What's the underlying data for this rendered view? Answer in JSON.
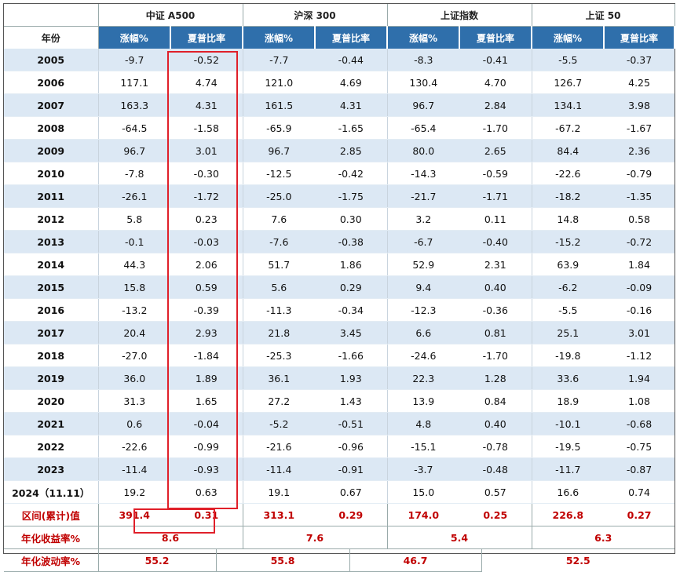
{
  "header": {
    "year_label": "年份",
    "groups": [
      "中证 A500",
      "沪深 300",
      "上证指数",
      "上证 50"
    ],
    "sub_labels": [
      "涨幅%",
      "夏普比率"
    ]
  },
  "rows": [
    {
      "year": "2005",
      "v": [
        "-9.7",
        "-0.52",
        "-7.7",
        "-0.44",
        "-8.3",
        "-0.41",
        "-5.5",
        "-0.37"
      ]
    },
    {
      "year": "2006",
      "v": [
        "117.1",
        "4.74",
        "121.0",
        "4.69",
        "130.4",
        "4.70",
        "126.7",
        "4.25"
      ]
    },
    {
      "year": "2007",
      "v": [
        "163.3",
        "4.31",
        "161.5",
        "4.31",
        "96.7",
        "2.84",
        "134.1",
        "3.98"
      ]
    },
    {
      "year": "2008",
      "v": [
        "-64.5",
        "-1.58",
        "-65.9",
        "-1.65",
        "-65.4",
        "-1.70",
        "-67.2",
        "-1.67"
      ]
    },
    {
      "year": "2009",
      "v": [
        "96.7",
        "3.01",
        "96.7",
        "2.85",
        "80.0",
        "2.65",
        "84.4",
        "2.36"
      ]
    },
    {
      "year": "2010",
      "v": [
        "-7.8",
        "-0.30",
        "-12.5",
        "-0.42",
        "-14.3",
        "-0.59",
        "-22.6",
        "-0.79"
      ]
    },
    {
      "year": "2011",
      "v": [
        "-26.1",
        "-1.72",
        "-25.0",
        "-1.75",
        "-21.7",
        "-1.71",
        "-18.2",
        "-1.35"
      ]
    },
    {
      "year": "2012",
      "v": [
        "5.8",
        "0.23",
        "7.6",
        "0.30",
        "3.2",
        "0.11",
        "14.8",
        "0.58"
      ]
    },
    {
      "year": "2013",
      "v": [
        "-0.1",
        "-0.03",
        "-7.6",
        "-0.38",
        "-6.7",
        "-0.40",
        "-15.2",
        "-0.72"
      ]
    },
    {
      "year": "2014",
      "v": [
        "44.3",
        "2.06",
        "51.7",
        "1.86",
        "52.9",
        "2.31",
        "63.9",
        "1.84"
      ]
    },
    {
      "year": "2015",
      "v": [
        "15.8",
        "0.59",
        "5.6",
        "0.29",
        "9.4",
        "0.40",
        "-6.2",
        "-0.09"
      ]
    },
    {
      "year": "2016",
      "v": [
        "-13.2",
        "-0.39",
        "-11.3",
        "-0.34",
        "-12.3",
        "-0.36",
        "-5.5",
        "-0.16"
      ]
    },
    {
      "year": "2017",
      "v": [
        "20.4",
        "2.93",
        "21.8",
        "3.45",
        "6.6",
        "0.81",
        "25.1",
        "3.01"
      ]
    },
    {
      "year": "2018",
      "v": [
        "-27.0",
        "-1.84",
        "-25.3",
        "-1.66",
        "-24.6",
        "-1.70",
        "-19.8",
        "-1.12"
      ]
    },
    {
      "year": "2019",
      "v": [
        "36.0",
        "1.89",
        "36.1",
        "1.93",
        "22.3",
        "1.28",
        "33.6",
        "1.94"
      ]
    },
    {
      "year": "2020",
      "v": [
        "31.3",
        "1.65",
        "27.2",
        "1.43",
        "13.9",
        "0.84",
        "18.9",
        "1.08"
      ]
    },
    {
      "year": "2021",
      "v": [
        "0.6",
        "-0.04",
        "-5.2",
        "-0.51",
        "4.8",
        "0.40",
        "-10.1",
        "-0.68"
      ]
    },
    {
      "year": "2022",
      "v": [
        "-22.6",
        "-0.99",
        "-21.6",
        "-0.96",
        "-15.1",
        "-0.78",
        "-19.5",
        "-0.75"
      ]
    },
    {
      "year": "2023",
      "v": [
        "-11.4",
        "-0.93",
        "-11.4",
        "-0.91",
        "-3.7",
        "-0.48",
        "-11.7",
        "-0.87"
      ]
    },
    {
      "year": "2024（11.11）",
      "v": [
        "19.2",
        "0.63",
        "19.1",
        "0.67",
        "15.0",
        "0.57",
        "16.6",
        "0.74"
      ]
    }
  ],
  "total_row": {
    "label": "区间(累计)值",
    "v": [
      "391.4",
      "0.31",
      "313.1",
      "0.29",
      "174.0",
      "0.25",
      "226.8",
      "0.27"
    ]
  },
  "annual_return": {
    "label": "年化收益率%",
    "v": [
      "8.6",
      "7.6",
      "5.4",
      "6.3"
    ]
  },
  "annual_volatility": {
    "label": "年化波动率%",
    "v": [
      "55.2",
      "55.8",
      "46.7",
      "52.5"
    ]
  },
  "colors": {
    "header_blue": "#2f6fab",
    "alt_row": "#dce8f4",
    "highlight_red": "#e0202a",
    "summary_text": "#c00000"
  }
}
